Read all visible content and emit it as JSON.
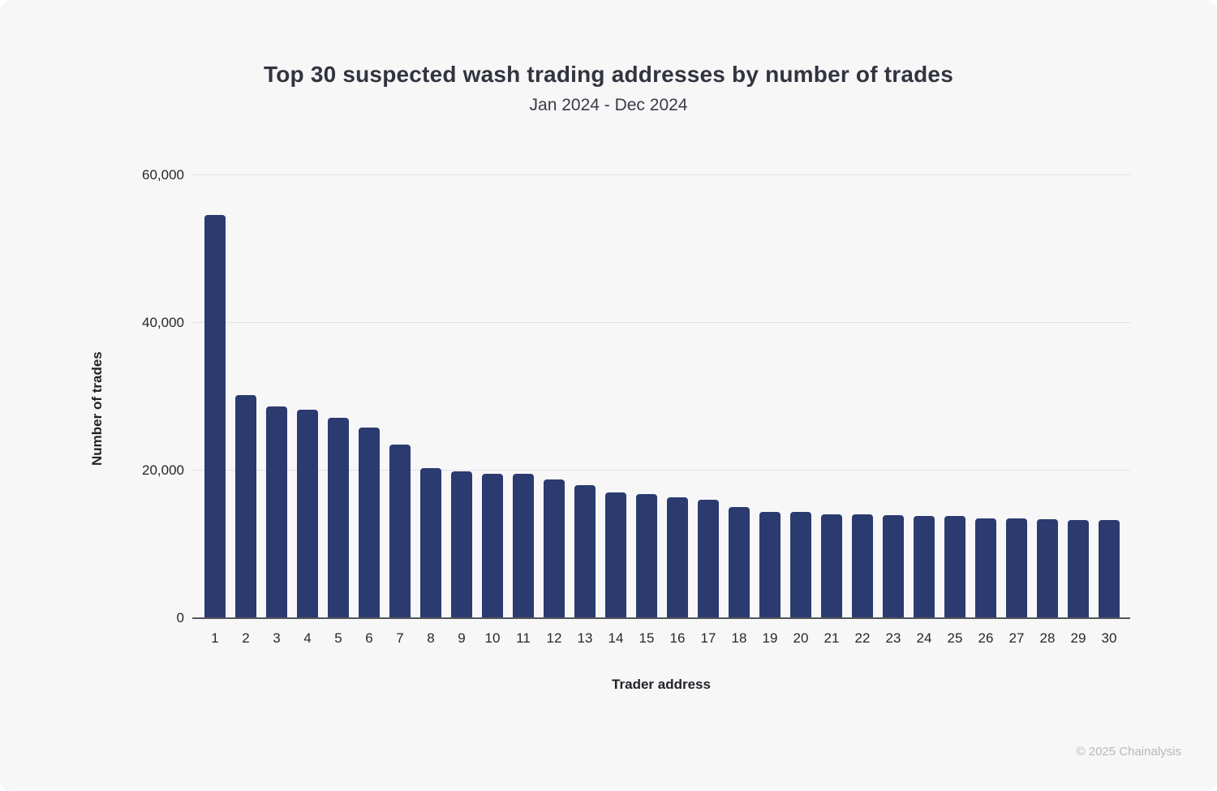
{
  "header": {
    "title": "Top 30 suspected wash trading addresses by number of trades",
    "subtitle": "Jan 2024 - Dec 2024"
  },
  "footer": {
    "watermark": "© 2025 Chainalysis"
  },
  "colors": {
    "bar": "#2b3b70",
    "background": "#f7f7f8",
    "gridline": "#e2e2e5",
    "axis_line": "#55565b",
    "title_text": "#32343f",
    "tick_text": "#26272c",
    "watermark_text": "#b7b8bd"
  },
  "chart_data": {
    "type": "bar",
    "title": "Top 30 suspected wash trading addresses by number of trades",
    "subtitle": "Jan 2024 - Dec 2024",
    "xlabel": "Trader address",
    "ylabel": "Number of trades",
    "categories": [
      "1",
      "2",
      "3",
      "4",
      "5",
      "6",
      "7",
      "8",
      "9",
      "10",
      "11",
      "12",
      "13",
      "14",
      "15",
      "16",
      "17",
      "18",
      "19",
      "20",
      "21",
      "22",
      "23",
      "24",
      "25",
      "26",
      "27",
      "28",
      "29",
      "30"
    ],
    "values": [
      54500,
      30100,
      28600,
      28100,
      27000,
      25700,
      23400,
      20200,
      19800,
      19500,
      19400,
      18700,
      17900,
      16900,
      16700,
      16300,
      15900,
      15000,
      14250,
      14250,
      14000,
      13950,
      13800,
      13750,
      13750,
      13450,
      13450,
      13250,
      13200,
      13200
    ],
    "ylim": [
      0,
      60000
    ],
    "yticks": [
      0,
      20000,
      40000,
      60000
    ],
    "ytick_labels": [
      "0",
      "20,000",
      "40,000",
      "60,000"
    ],
    "grid": "horizontal",
    "legend": "none",
    "bar_color": "#2b3b70"
  }
}
